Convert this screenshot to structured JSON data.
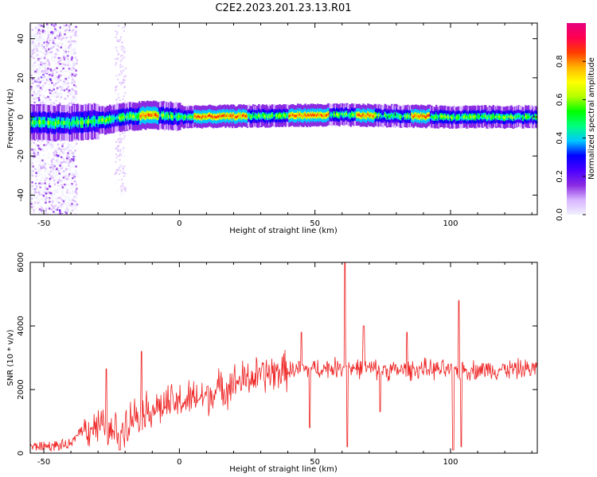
{
  "title": "C2E2.2023.201.23.13.R01",
  "chart_data": [
    {
      "type": "heatmap",
      "xlabel": "Height of straight line (km)",
      "ylabel": "Frequency (Hz)",
      "xlim": [
        -55,
        132
      ],
      "ylim": [
        -50,
        48
      ],
      "xticks": [
        -50,
        0,
        50,
        100
      ],
      "yticks": [
        -40,
        -20,
        0,
        20,
        40
      ],
      "colorbar": {
        "label": "Normalized spectral amplitude",
        "range": [
          0,
          1
        ],
        "ticks": [
          "0.0",
          "0.2",
          "0.4",
          "0.6",
          "0.8"
        ],
        "colormap": [
          "#f0f0ff",
          "#d8b4ff",
          "#8a2be2",
          "#4b00ff",
          "#0000ff",
          "#00c8ff",
          "#00ff7f",
          "#00ff00",
          "#b4ff00",
          "#ffff00",
          "#ffb400",
          "#ff3c00",
          "#ff0050",
          "#e6007e"
        ]
      },
      "ridge": {
        "frequency": [
          [
            -55,
            -3
          ],
          [
            -40,
            -3
          ],
          [
            -30,
            -2
          ],
          [
            -20,
            0
          ],
          [
            -10,
            1
          ],
          [
            0,
            0
          ],
          [
            60,
            1
          ],
          [
            100,
            0
          ],
          [
            132,
            0
          ]
        ],
        "peak_amplitude_ranges_km": [
          [
            -15,
            -8
          ],
          [
            5,
            25
          ],
          [
            40,
            55
          ],
          [
            65,
            72
          ],
          [
            85,
            92
          ]
        ]
      }
    },
    {
      "type": "line",
      "xlabel": "Height of straight line (km)",
      "ylabel": "SNR (10 * v/v)",
      "xlim": [
        -55,
        132
      ],
      "ylim": [
        0,
        6000
      ],
      "xticks": [
        -50,
        0,
        50,
        100
      ],
      "yticks": [
        0,
        2000,
        4000,
        6000
      ],
      "series": [
        {
          "color": "#ee2222",
          "baseline": [
            [
              -55,
              200
            ],
            [
              -40,
              250
            ],
            [
              -37,
              700
            ],
            [
              -30,
              900
            ],
            [
              -25,
              600
            ],
            [
              -15,
              1300
            ],
            [
              -5,
              1500
            ],
            [
              0,
              1600
            ],
            [
              10,
              1800
            ],
            [
              20,
              2200
            ],
            [
              30,
              2450
            ],
            [
              40,
              2600
            ],
            [
              50,
              2650
            ],
            [
              60,
              2700
            ],
            [
              70,
              2650
            ],
            [
              80,
              2600
            ],
            [
              90,
              2650
            ],
            [
              100,
              2600
            ],
            [
              110,
              2620
            ],
            [
              120,
              2640
            ],
            [
              132,
              2650
            ]
          ],
          "spikes": [
            [
              -27,
              2650
            ],
            [
              -22,
              100
            ],
            [
              -14,
              3200
            ],
            [
              45,
              3800
            ],
            [
              48,
              800
            ],
            [
              61,
              6000
            ],
            [
              62,
              200
            ],
            [
              68,
              4000
            ],
            [
              74,
              1300
            ],
            [
              84,
              3800
            ],
            [
              101,
              100
            ],
            [
              103,
              4800
            ],
            [
              104,
              200
            ]
          ]
        }
      ]
    }
  ]
}
